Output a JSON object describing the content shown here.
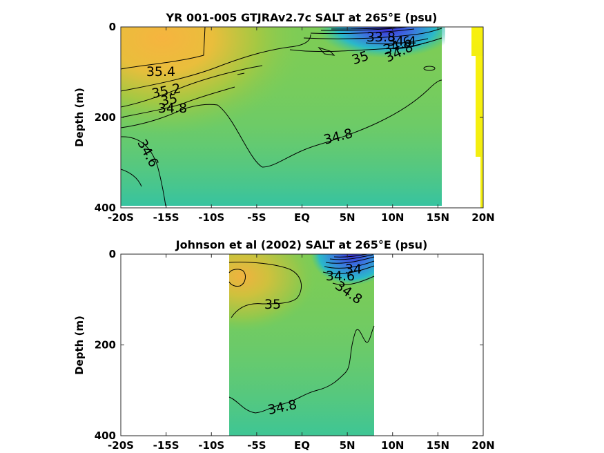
{
  "chart_data": [
    {
      "type": "heatmap",
      "title": "YR 001-005 GTJRAv2.7c SALT at 265°E (psu)",
      "ylabel": "Depth (m)",
      "xlabel": "",
      "xlim": [
        -20,
        20
      ],
      "ylim": [
        0,
        400
      ],
      "y_reversed": true,
      "x_ticks": [
        -20,
        -15,
        -10,
        -5,
        0,
        5,
        10,
        15,
        20
      ],
      "x_tick_labels": [
        "-20S",
        "-15S",
        "-10S",
        "-5S",
        "EQ",
        "5N",
        "10N",
        "15N",
        "20N"
      ],
      "y_ticks": [
        0,
        200,
        400
      ],
      "y_tick_labels": [
        "0",
        "200",
        "400"
      ],
      "contour_labels": [
        {
          "text": "35.4",
          "x": -16.8,
          "y": 100
        },
        {
          "text": "35.2",
          "x": -16.7,
          "y": 142
        },
        {
          "text": "35",
          "x": -16.6,
          "y": 157
        },
        {
          "text": "34.8",
          "x": -16.0,
          "y": 178
        },
        {
          "text": "34.6",
          "x": -18.2,
          "y": 277
        },
        {
          "text": "34.8",
          "x": 1.9,
          "y": 238
        },
        {
          "text": "35",
          "x": 3.3,
          "y": 67
        },
        {
          "text": "33.8",
          "x": 7.3,
          "y": 20
        },
        {
          "text": "34.4",
          "x": 8.7,
          "y": 30
        },
        {
          "text": "34.6",
          "x": 8.3,
          "y": 42
        },
        {
          "text": "34.8",
          "x": 8.7,
          "y": 53
        }
      ],
      "colorscale": [
        "#3a2fd6",
        "#2ec6a7",
        "#7dcc4f",
        "#f5b942",
        "#fde72a"
      ]
    },
    {
      "type": "heatmap",
      "title": "Johnson et al (2002) SALT at 265°E (psu)",
      "ylabel": "Depth (m)",
      "xlabel": "",
      "xlim": [
        -20,
        20
      ],
      "ylim": [
        0,
        400
      ],
      "y_reversed": true,
      "x_ticks": [
        -20,
        -15,
        -10,
        -5,
        0,
        5,
        10,
        15,
        20
      ],
      "x_tick_labels": [
        "-20S",
        "-15S",
        "-10S",
        "-5S",
        "EQ",
        "5N",
        "10N",
        "15N",
        "20N"
      ],
      "y_ticks": [
        0,
        200,
        400
      ],
      "y_tick_labels": [
        "0",
        "200",
        "400"
      ],
      "data_extent_x": [
        -8,
        8
      ],
      "contour_labels": [
        {
          "text": "35",
          "x": -3.1,
          "y": 110
        },
        {
          "text": "34",
          "x": 5.5,
          "y": 35
        },
        {
          "text": "34.6",
          "x": 4.2,
          "y": 50
        },
        {
          "text": "34.8",
          "x": 5.1,
          "y": 83
        },
        {
          "text": "34.8",
          "x": -2.1,
          "y": 338
        }
      ],
      "colorscale": [
        "#3a2fd6",
        "#2ec6a7",
        "#7dcc4f",
        "#f5b942",
        "#fde72a"
      ]
    }
  ]
}
